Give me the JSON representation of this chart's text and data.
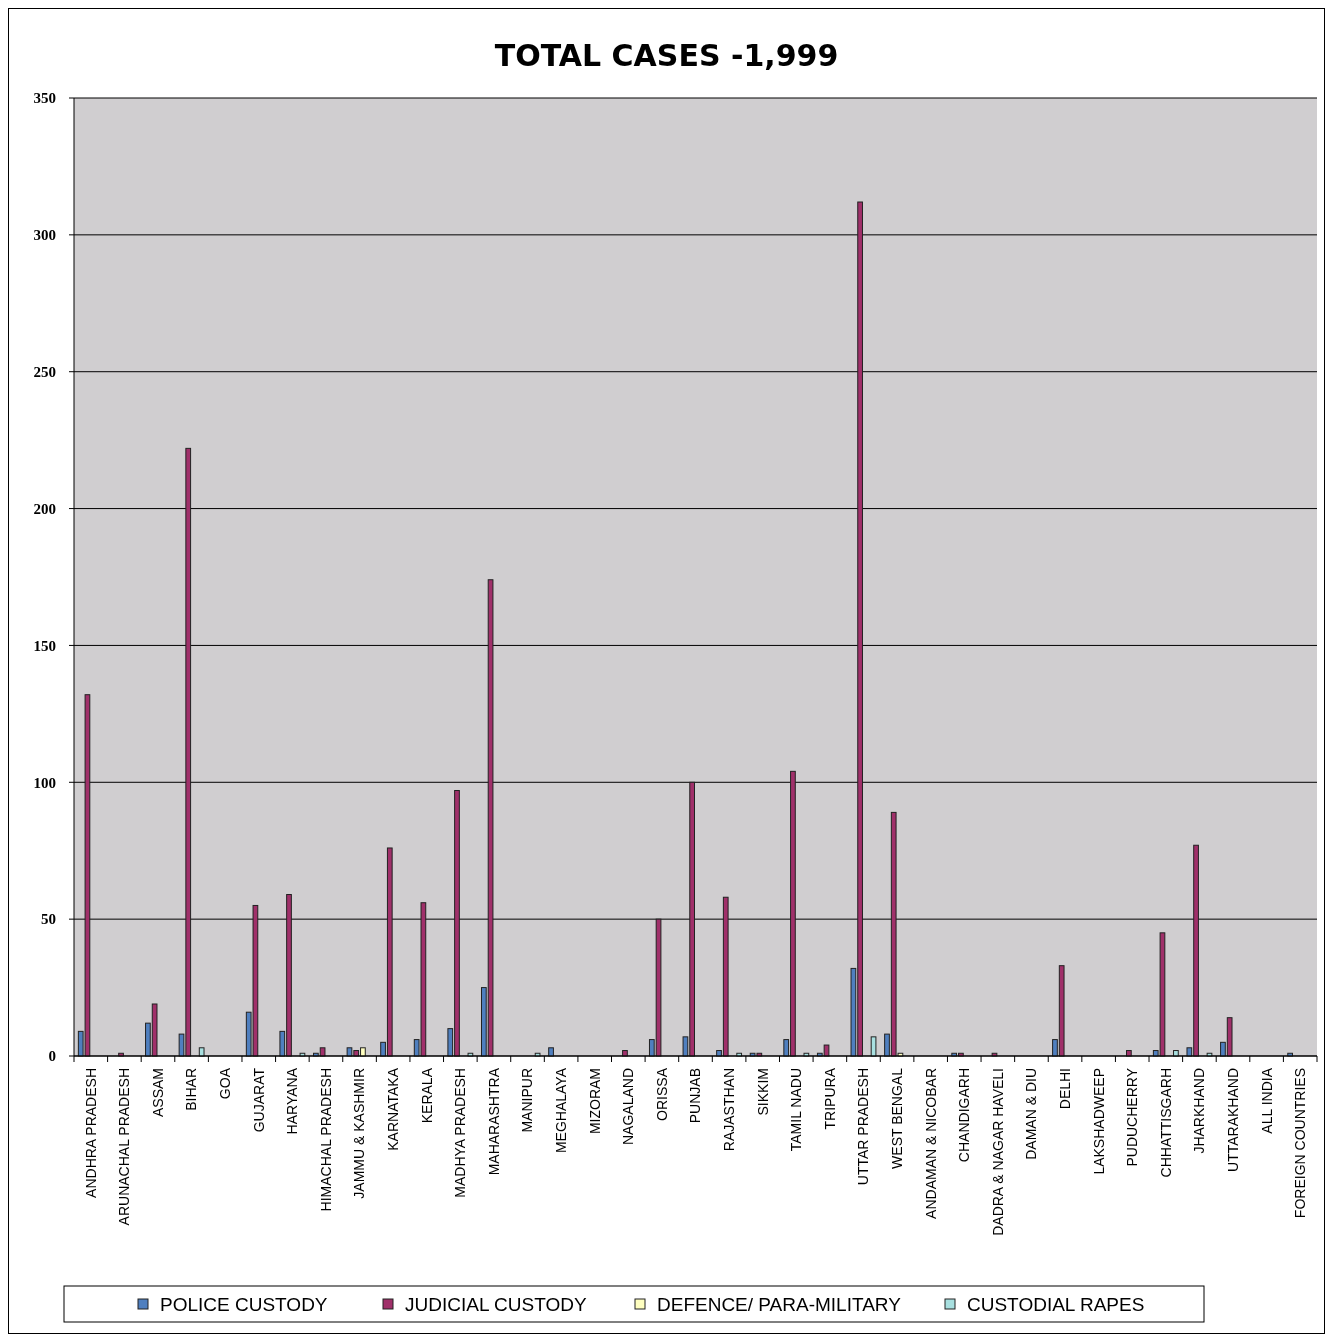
{
  "chart_data": {
    "type": "bar",
    "title": "TOTAL CASES -1,999",
    "categories": [
      "ANDHRA PRADESH",
      "ARUNACHAL PRADESH",
      "ASSAM",
      "BIHAR",
      "GOA",
      "GUJARAT",
      "HARYANA",
      "HIMACHAL PRADESH",
      "JAMMU & KASHMIR",
      "KARNATAKA",
      "KERALA",
      "MADHYA PRADESH",
      "MAHARASHTRA",
      "MANIPUR",
      "MEGHALAYA",
      "MIZORAM",
      "NAGALAND",
      "ORISSA",
      "PUNJAB",
      "RAJASTHAN",
      "SIKKIM",
      "TAMIL NADU",
      "TRIPURA",
      "UTTAR PRADESH",
      "WEST BENGAL",
      "ANDAMAN & NICOBAR",
      "CHANDIGARH",
      "DADRA & NAGAR HAVELI",
      "DAMAN & DIU",
      "DELHI",
      "LAKSHADWEEP",
      "PUDUCHERRY",
      "CHHATTISGARH",
      "JHARKHAND",
      "UTTARAKHAND",
      "ALL INDIA",
      "FOREIGN COUNTRIES"
    ],
    "series": [
      {
        "name": "POLICE CUSTODY",
        "color": "#4f7fbf",
        "values": [
          9,
          0,
          12,
          8,
          0,
          16,
          9,
          1,
          3,
          5,
          6,
          10,
          25,
          0,
          3,
          0,
          0,
          6,
          7,
          2,
          1,
          6,
          1,
          32,
          8,
          0,
          1,
          0,
          0,
          6,
          0,
          0,
          2,
          3,
          5,
          0,
          1
        ]
      },
      {
        "name": "JUDICIAL CUSTODY",
        "color": "#a0306a",
        "values": [
          132,
          1,
          19,
          222,
          0,
          55,
          59,
          3,
          2,
          76,
          56,
          97,
          174,
          0,
          0,
          0,
          2,
          50,
          100,
          58,
          1,
          104,
          4,
          312,
          89,
          0,
          1,
          1,
          0,
          33,
          0,
          2,
          45,
          77,
          14,
          0,
          0
        ]
      },
      {
        "name": "DEFENCE/ PARA-MILITARY",
        "color": "#ffffc0",
        "values": [
          0,
          0,
          0,
          0,
          0,
          0,
          0,
          0,
          3,
          0,
          0,
          0,
          0,
          0,
          0,
          0,
          0,
          0,
          0,
          0,
          0,
          0,
          0,
          0,
          1,
          0,
          0,
          0,
          0,
          0,
          0,
          0,
          0,
          0,
          0,
          0,
          0
        ]
      },
      {
        "name": "CUSTODIAL RAPES",
        "color": "#a8e0e0",
        "values": [
          0,
          0,
          0,
          3,
          0,
          0,
          1,
          0,
          0,
          0,
          0,
          1,
          0,
          1,
          0,
          0,
          0,
          0,
          0,
          1,
          0,
          1,
          0,
          7,
          0,
          0,
          0,
          0,
          0,
          0,
          0,
          0,
          2,
          1,
          0,
          0,
          0
        ]
      }
    ],
    "ylim": [
      0,
      350
    ],
    "yticks": [
      0,
      50,
      100,
      150,
      200,
      250,
      300,
      350
    ],
    "grid": "y",
    "legend": "bottom"
  }
}
